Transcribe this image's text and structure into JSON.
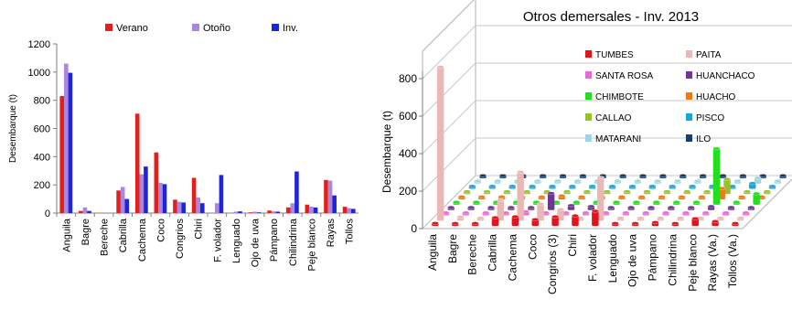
{
  "chart_data": [
    {
      "type": "bar",
      "ylabel": "Desembarque (t)",
      "xlabel": "",
      "title": "",
      "ylim": [
        0,
        1200
      ],
      "yticks": [
        0,
        200,
        400,
        600,
        800,
        1000,
        1200
      ],
      "grid": false,
      "legend_position": "top",
      "categories": [
        "Anguila",
        "Bagre",
        "Bereche",
        "Cabrilla",
        "Cachema",
        "Coco",
        "Congrios",
        "Chiri",
        "F. volador",
        "Lenguado",
        "Ojo de uva",
        "Pámpano",
        "Chilindrina",
        "Peje blanco",
        "Rayas",
        "Tollos"
      ],
      "series": [
        {
          "name": "Verano",
          "color": "#e0211b",
          "values": [
            830,
            15,
            0,
            160,
            705,
            430,
            95,
            250,
            0,
            0,
            5,
            18,
            40,
            60,
            235,
            45
          ]
        },
        {
          "name": "Otoño",
          "color": "#a987e0",
          "values": [
            1060,
            40,
            0,
            185,
            275,
            215,
            80,
            110,
            70,
            10,
            10,
            12,
            70,
            45,
            230,
            35
          ]
        },
        {
          "name": "Inv.",
          "color": "#1f24d6",
          "values": [
            995,
            15,
            0,
            100,
            330,
            205,
            75,
            70,
            270,
            12,
            5,
            10,
            295,
            40,
            125,
            30
          ]
        }
      ]
    },
    {
      "type": "bar",
      "title": "Otros demersales - Inv. 2013",
      "ylabel": "Desembarque (t)",
      "xlabel": "",
      "ylim": [
        0,
        800
      ],
      "yticks": [
        0,
        200,
        400,
        600,
        800
      ],
      "grid": true,
      "legend_position": "top-right",
      "categories": [
        "Anguila",
        "Bagre",
        "Bereche",
        "Cabrilla",
        "Cachema",
        "Coco",
        "Congrios (3)",
        "Chiri",
        "F. volador",
        "Lenguado",
        "Ojo de uva",
        "Pámpano",
        "Chilindrina",
        "Peje blanco",
        "Rayas (Va.)",
        "Tollos (Va.)"
      ],
      "series": [
        {
          "name": "TUMBES",
          "color": "#e3131b",
          "values": [
            15,
            0,
            0,
            45,
            50,
            35,
            50,
            55,
            80,
            0,
            10,
            20,
            0,
            40,
            25,
            10
          ]
        },
        {
          "name": "PAITA",
          "color": "#e9b8b6",
          "values": [
            820,
            20,
            5,
            110,
            260,
            90,
            60,
            10,
            230,
            0,
            0,
            10,
            0,
            5,
            10,
            5
          ]
        },
        {
          "name": "SANTA ROSA",
          "color": "#e66ad8",
          "values": [
            0,
            5,
            0,
            10,
            20,
            15,
            10,
            10,
            5,
            0,
            0,
            0,
            0,
            10,
            10,
            5
          ]
        },
        {
          "name": "HUANCHACO",
          "color": "#6f3497",
          "values": [
            0,
            0,
            0,
            5,
            10,
            90,
            25,
            20,
            10,
            0,
            0,
            0,
            0,
            20,
            15,
            5
          ]
        },
        {
          "name": "CHIMBOTE",
          "color": "#22e01c",
          "values": [
            0,
            0,
            0,
            0,
            0,
            0,
            0,
            0,
            0,
            0,
            0,
            0,
            0,
            300,
            10,
            60
          ]
        },
        {
          "name": "HUACHO",
          "color": "#f07a13",
          "values": [
            0,
            0,
            0,
            5,
            10,
            20,
            10,
            5,
            10,
            0,
            0,
            0,
            0,
            60,
            10,
            5
          ]
        },
        {
          "name": "CALLAO",
          "color": "#9ac12b",
          "values": [
            0,
            0,
            0,
            5,
            10,
            15,
            10,
            5,
            5,
            0,
            0,
            0,
            0,
            80,
            10,
            5
          ]
        },
        {
          "name": "PISCO",
          "color": "#1ba3e0",
          "values": [
            0,
            0,
            0,
            5,
            10,
            10,
            10,
            5,
            5,
            0,
            0,
            0,
            0,
            10,
            30,
            5
          ]
        },
        {
          "name": "MATARANI",
          "color": "#9fd6e6",
          "values": [
            0,
            0,
            0,
            5,
            5,
            5,
            5,
            5,
            5,
            0,
            0,
            0,
            0,
            5,
            30,
            5
          ]
        },
        {
          "name": "ILO",
          "color": "#1a3d6e",
          "values": [
            0,
            0,
            0,
            5,
            5,
            5,
            5,
            5,
            5,
            0,
            0,
            0,
            0,
            5,
            10,
            5
          ]
        }
      ]
    }
  ]
}
